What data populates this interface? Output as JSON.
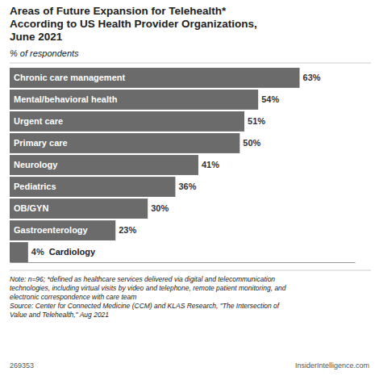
{
  "chart_data": {
    "type": "bar",
    "orientation": "horizontal",
    "title": "Areas of Future Expansion for Telehealth*\nAccording to US Health Provider Organizations,\nJune 2021",
    "subtitle": "% of respondents",
    "categories": [
      "Chronic care management",
      "Mental/behavioral health",
      "Urgent care",
      "Primary care",
      "Neurology",
      "Pediatrics",
      "OB/GYN",
      "Gastroenterology",
      "Cardiology"
    ],
    "values": [
      63,
      54,
      51,
      50,
      41,
      36,
      30,
      23,
      4
    ],
    "value_labels": [
      "63%",
      "54%",
      "51%",
      "50%",
      "41%",
      "36%",
      "30%",
      "23%",
      "4%"
    ],
    "data_labels": true,
    "color": "#6b6b6b",
    "xlim": [
      0,
      75
    ],
    "grid": false,
    "tick_labels": false,
    "annotations": [
      "Note: n=96; *defined as healthcare services delivered via digital and telecommunication\ntechnologies, including virtual visits by video and telephone, remote patient monitoring, and\nelectronic correspondence with care team\nSource: Center for Connected Medicine (CCM) and KLAS Research, \"The Intersection of\nValue and Telehealth,\" Aug 2021",
      "269353",
      "InsiderIntelligence.com"
    ]
  }
}
